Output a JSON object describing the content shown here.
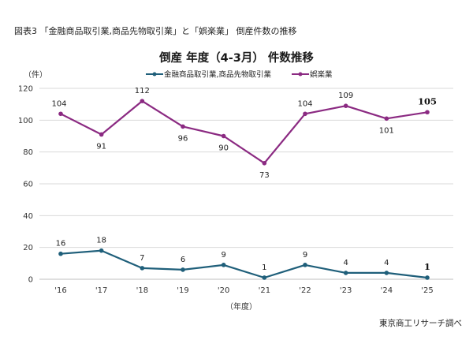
{
  "figure_caption": "図表3 「金融商品取引業,商品先物取引業」と「娯楽業」 倒産件数の推移",
  "credit": "東京商工リサーチ調べ",
  "colors": {
    "series1": "#1f5f7a",
    "series2": "#8b2a82",
    "grid": "#d9d9d9",
    "axis": "#bfbfbf"
  },
  "chart_data": {
    "type": "line",
    "title": "倒産 年度（4-3月） 件数推移",
    "ylabel": "（件）",
    "xlabel": "（年度）",
    "categories": [
      "'16",
      "'17",
      "'18",
      "'19",
      "'20",
      "'21",
      "'22",
      "'23",
      "'24",
      "'25"
    ],
    "yticks": [
      "0",
      "20",
      "40",
      "60",
      "80",
      "100",
      "120"
    ],
    "ylim": [
      0,
      120
    ],
    "grid": true,
    "legend_position": "top-center",
    "series": [
      {
        "name": "金融商品取引業,商品先物取引業",
        "values": [
          16,
          18,
          7,
          6,
          9,
          1,
          9,
          4,
          4,
          1
        ]
      },
      {
        "name": "娯楽業",
        "values": [
          104,
          91,
          112,
          96,
          90,
          73,
          104,
          109,
          101,
          105
        ]
      }
    ]
  }
}
